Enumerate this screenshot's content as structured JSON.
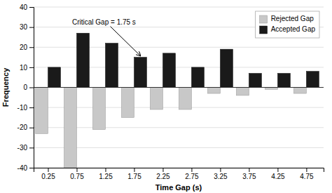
{
  "chart_data": {
    "type": "bar",
    "x": [
      0.25,
      0.75,
      1.25,
      1.75,
      2.25,
      2.75,
      3.25,
      3.75,
      4.25,
      4.75
    ],
    "series": [
      {
        "name": "Rejected Gap",
        "color": "#c8c8c8",
        "values": [
          -23,
          -40,
          -21,
          -15,
          -11,
          -11,
          -3,
          -4,
          -1,
          -3
        ]
      },
      {
        "name": "Accepted Gap",
        "color": "#1a1a1a",
        "values": [
          10,
          27,
          22,
          15,
          17,
          10,
          19,
          7,
          7,
          8
        ]
      }
    ],
    "xlim": [
      0.0,
      5.05
    ],
    "xticks": [
      0.25,
      0.75,
      1.25,
      1.75,
      2.25,
      2.75,
      3.25,
      3.75,
      4.25,
      4.75
    ],
    "ylim": [
      -40,
      40
    ],
    "yticks": [
      -40,
      -30,
      -20,
      -10,
      0,
      10,
      20,
      30,
      40
    ],
    "xlabel": "Time Gap (s)",
    "ylabel": "Frequency",
    "annotations": [
      {
        "text": "Critical Gap = 1.75 s",
        "x": 1.75
      }
    ],
    "grid": true,
    "legend": "top-right"
  }
}
